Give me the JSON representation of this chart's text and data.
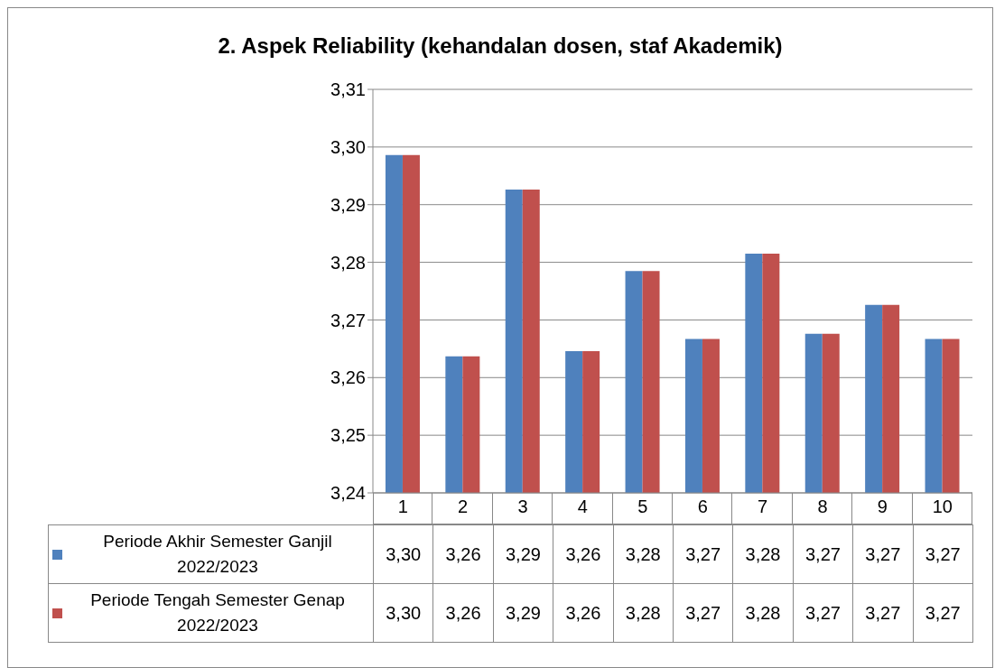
{
  "chart_data": {
    "type": "bar",
    "title": "2. Aspek Reliability (kehandalan dosen, staf Akademik)",
    "categories": [
      "1",
      "2",
      "3",
      "4",
      "5",
      "6",
      "7",
      "8",
      "9",
      "10"
    ],
    "series": [
      {
        "name": "Periode Akhir Semester Ganjil 2022/2023",
        "color": "#4f81bd",
        "values": [
          3.2986,
          3.2637,
          3.2926,
          3.2646,
          3.2785,
          3.2667,
          3.2815,
          3.2676,
          3.2726,
          3.2667
        ],
        "value_labels": [
          "3,30",
          "3,26",
          "3,29",
          "3,26",
          "3,28",
          "3,27",
          "3,28",
          "3,27",
          "3,27",
          "3,27"
        ]
      },
      {
        "name": "Periode Tengah Semester Genap 2022/2023",
        "color": "#c0504d",
        "values": [
          3.2986,
          3.2637,
          3.2926,
          3.2646,
          3.2785,
          3.2667,
          3.2815,
          3.2676,
          3.2726,
          3.2667
        ],
        "value_labels": [
          "3,30",
          "3,26",
          "3,29",
          "3,26",
          "3,28",
          "3,27",
          "3,28",
          "3,27",
          "3,27",
          "3,27"
        ]
      }
    ],
    "ylim": [
      3.24,
      3.31
    ],
    "yticks": [
      {
        "value": 3.24,
        "label": "3,24"
      },
      {
        "value": 3.25,
        "label": "3,25"
      },
      {
        "value": 3.26,
        "label": "3,26"
      },
      {
        "value": 3.27,
        "label": "3,27"
      },
      {
        "value": 3.28,
        "label": "3,28"
      },
      {
        "value": 3.29,
        "label": "3,29"
      },
      {
        "value": 3.3,
        "label": "3,30"
      },
      {
        "value": 3.31,
        "label": "3,31"
      }
    ],
    "grid": "y",
    "legend": "bottom left"
  }
}
